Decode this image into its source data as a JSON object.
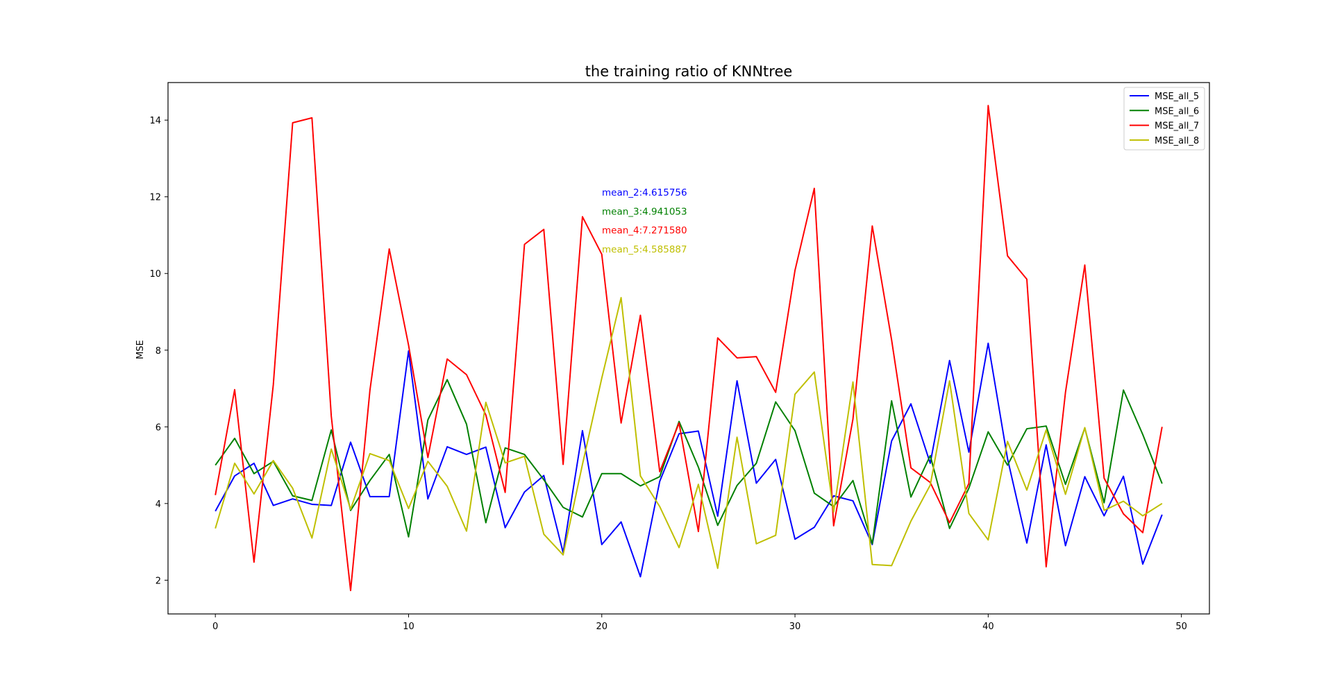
{
  "chart_data": {
    "type": "line",
    "title": "the training ratio of KNNtree",
    "xlabel": "",
    "ylabel": "MSE",
    "xlim": [
      -2.45,
      51.45
    ],
    "ylim": [
      1.12,
      14.98
    ],
    "x_ticks": [
      0,
      10,
      20,
      30,
      40,
      50
    ],
    "y_ticks": [
      2,
      4,
      6,
      8,
      10,
      12,
      14
    ],
    "grid": false,
    "legend": "top-right",
    "x": [
      0,
      1,
      2,
      3,
      4,
      5,
      6,
      7,
      8,
      9,
      10,
      11,
      12,
      13,
      14,
      15,
      16,
      17,
      18,
      19,
      20,
      21,
      22,
      23,
      24,
      25,
      26,
      27,
      28,
      29,
      30,
      31,
      32,
      33,
      34,
      35,
      36,
      37,
      38,
      39,
      40,
      41,
      42,
      43,
      44,
      45,
      46,
      47,
      48,
      49
    ],
    "series": [
      {
        "name": "MSE_all_5",
        "color": "#0000ff",
        "values": [
          3.8,
          4.72,
          5.05,
          3.95,
          4.12,
          3.98,
          3.95,
          5.6,
          4.18,
          4.18,
          7.98,
          4.12,
          5.48,
          5.28,
          5.47,
          3.37,
          4.3,
          4.73,
          2.72,
          5.9,
          2.93,
          3.52,
          2.09,
          4.58,
          5.82,
          5.89,
          3.67,
          7.2,
          4.53,
          5.15,
          3.07,
          3.38,
          4.2,
          4.07,
          2.93,
          5.63,
          6.6,
          5.05,
          7.73,
          5.34,
          8.18,
          5.17,
          2.97,
          5.53,
          2.9,
          4.7,
          3.68,
          4.71,
          2.42,
          3.71
        ]
      },
      {
        "name": "MSE_all_6",
        "color": "#008000",
        "values": [
          5.0,
          5.7,
          4.78,
          5.1,
          4.2,
          4.08,
          5.92,
          3.82,
          4.6,
          5.28,
          3.13,
          6.18,
          7.23,
          6.07,
          3.5,
          5.45,
          5.28,
          4.62,
          3.9,
          3.65,
          4.78,
          4.78,
          4.46,
          4.7,
          6.14,
          4.95,
          3.43,
          4.47,
          5.05,
          6.65,
          5.9,
          4.27,
          3.92,
          4.6,
          2.95,
          6.68,
          4.17,
          5.25,
          3.35,
          4.4,
          5.87,
          5.0,
          5.95,
          6.02,
          4.5,
          5.97,
          4.02,
          6.96,
          5.8,
          4.52
        ]
      },
      {
        "name": "MSE_all_7",
        "color": "#ff0000",
        "values": [
          4.22,
          6.97,
          2.47,
          7.1,
          13.93,
          14.06,
          6.28,
          1.73,
          6.95,
          10.64,
          8.13,
          5.2,
          7.77,
          7.36,
          6.31,
          4.29,
          10.76,
          11.15,
          5.02,
          11.48,
          10.5,
          6.1,
          8.91,
          4.83,
          6.1,
          3.27,
          8.32,
          7.8,
          7.83,
          6.9,
          10.08,
          12.22,
          3.42,
          6.2,
          11.24,
          8.27,
          4.93,
          4.55,
          3.5,
          4.52,
          14.38,
          10.46,
          9.85,
          2.35,
          6.9,
          10.22,
          4.66,
          3.73,
          3.24,
          6.0
        ]
      },
      {
        "name": "MSE_all_8",
        "color": "#bfbf00",
        "values": [
          3.35,
          5.05,
          4.25,
          5.12,
          4.4,
          3.1,
          5.42,
          3.85,
          5.3,
          5.12,
          3.87,
          5.1,
          4.45,
          3.28,
          6.64,
          5.06,
          5.23,
          3.2,
          2.66,
          5.02,
          7.27,
          9.37,
          4.72,
          3.92,
          2.85,
          4.5,
          2.31,
          5.73,
          2.95,
          3.17,
          6.85,
          7.43,
          3.78,
          7.17,
          2.41,
          2.38,
          3.54,
          4.48,
          7.2,
          3.74,
          3.05,
          5.62,
          4.35,
          5.92,
          4.24,
          5.98,
          3.82,
          4.06,
          3.68,
          4.0
        ]
      }
    ],
    "annotations": [
      {
        "text": "mean_2:4.615756",
        "color": "#0000ff"
      },
      {
        "text": "mean_3:4.941053",
        "color": "#008000"
      },
      {
        "text": "mean_4:7.271580",
        "color": "#ff0000"
      },
      {
        "text": "mean_5:4.585887",
        "color": "#bfbf00"
      }
    ]
  }
}
